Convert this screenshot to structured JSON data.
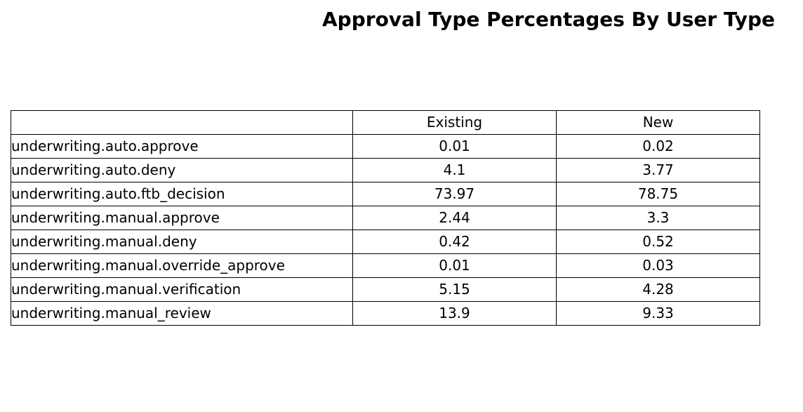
{
  "chart_data": {
    "type": "table",
    "title": "Approval Type Percentages By User Type",
    "columns": [
      "Existing",
      "New"
    ],
    "rows": [
      {
        "label": "underwriting.auto.approve",
        "values": [
          "0.01",
          "0.02"
        ]
      },
      {
        "label": "underwriting.auto.deny",
        "values": [
          "4.1",
          "3.77"
        ]
      },
      {
        "label": "underwriting.auto.ftb_decision",
        "values": [
          "73.97",
          "78.75"
        ]
      },
      {
        "label": "underwriting.manual.approve",
        "values": [
          "2.44",
          "3.3"
        ]
      },
      {
        "label": "underwriting.manual.deny",
        "values": [
          "0.42",
          "0.52"
        ]
      },
      {
        "label": "underwriting.manual.override_approve",
        "values": [
          "0.01",
          "0.03"
        ]
      },
      {
        "label": "underwriting.manual.verification",
        "values": [
          "5.15",
          "4.28"
        ]
      },
      {
        "label": "underwriting.manual_review",
        "values": [
          "13.9",
          "9.33"
        ]
      }
    ]
  }
}
